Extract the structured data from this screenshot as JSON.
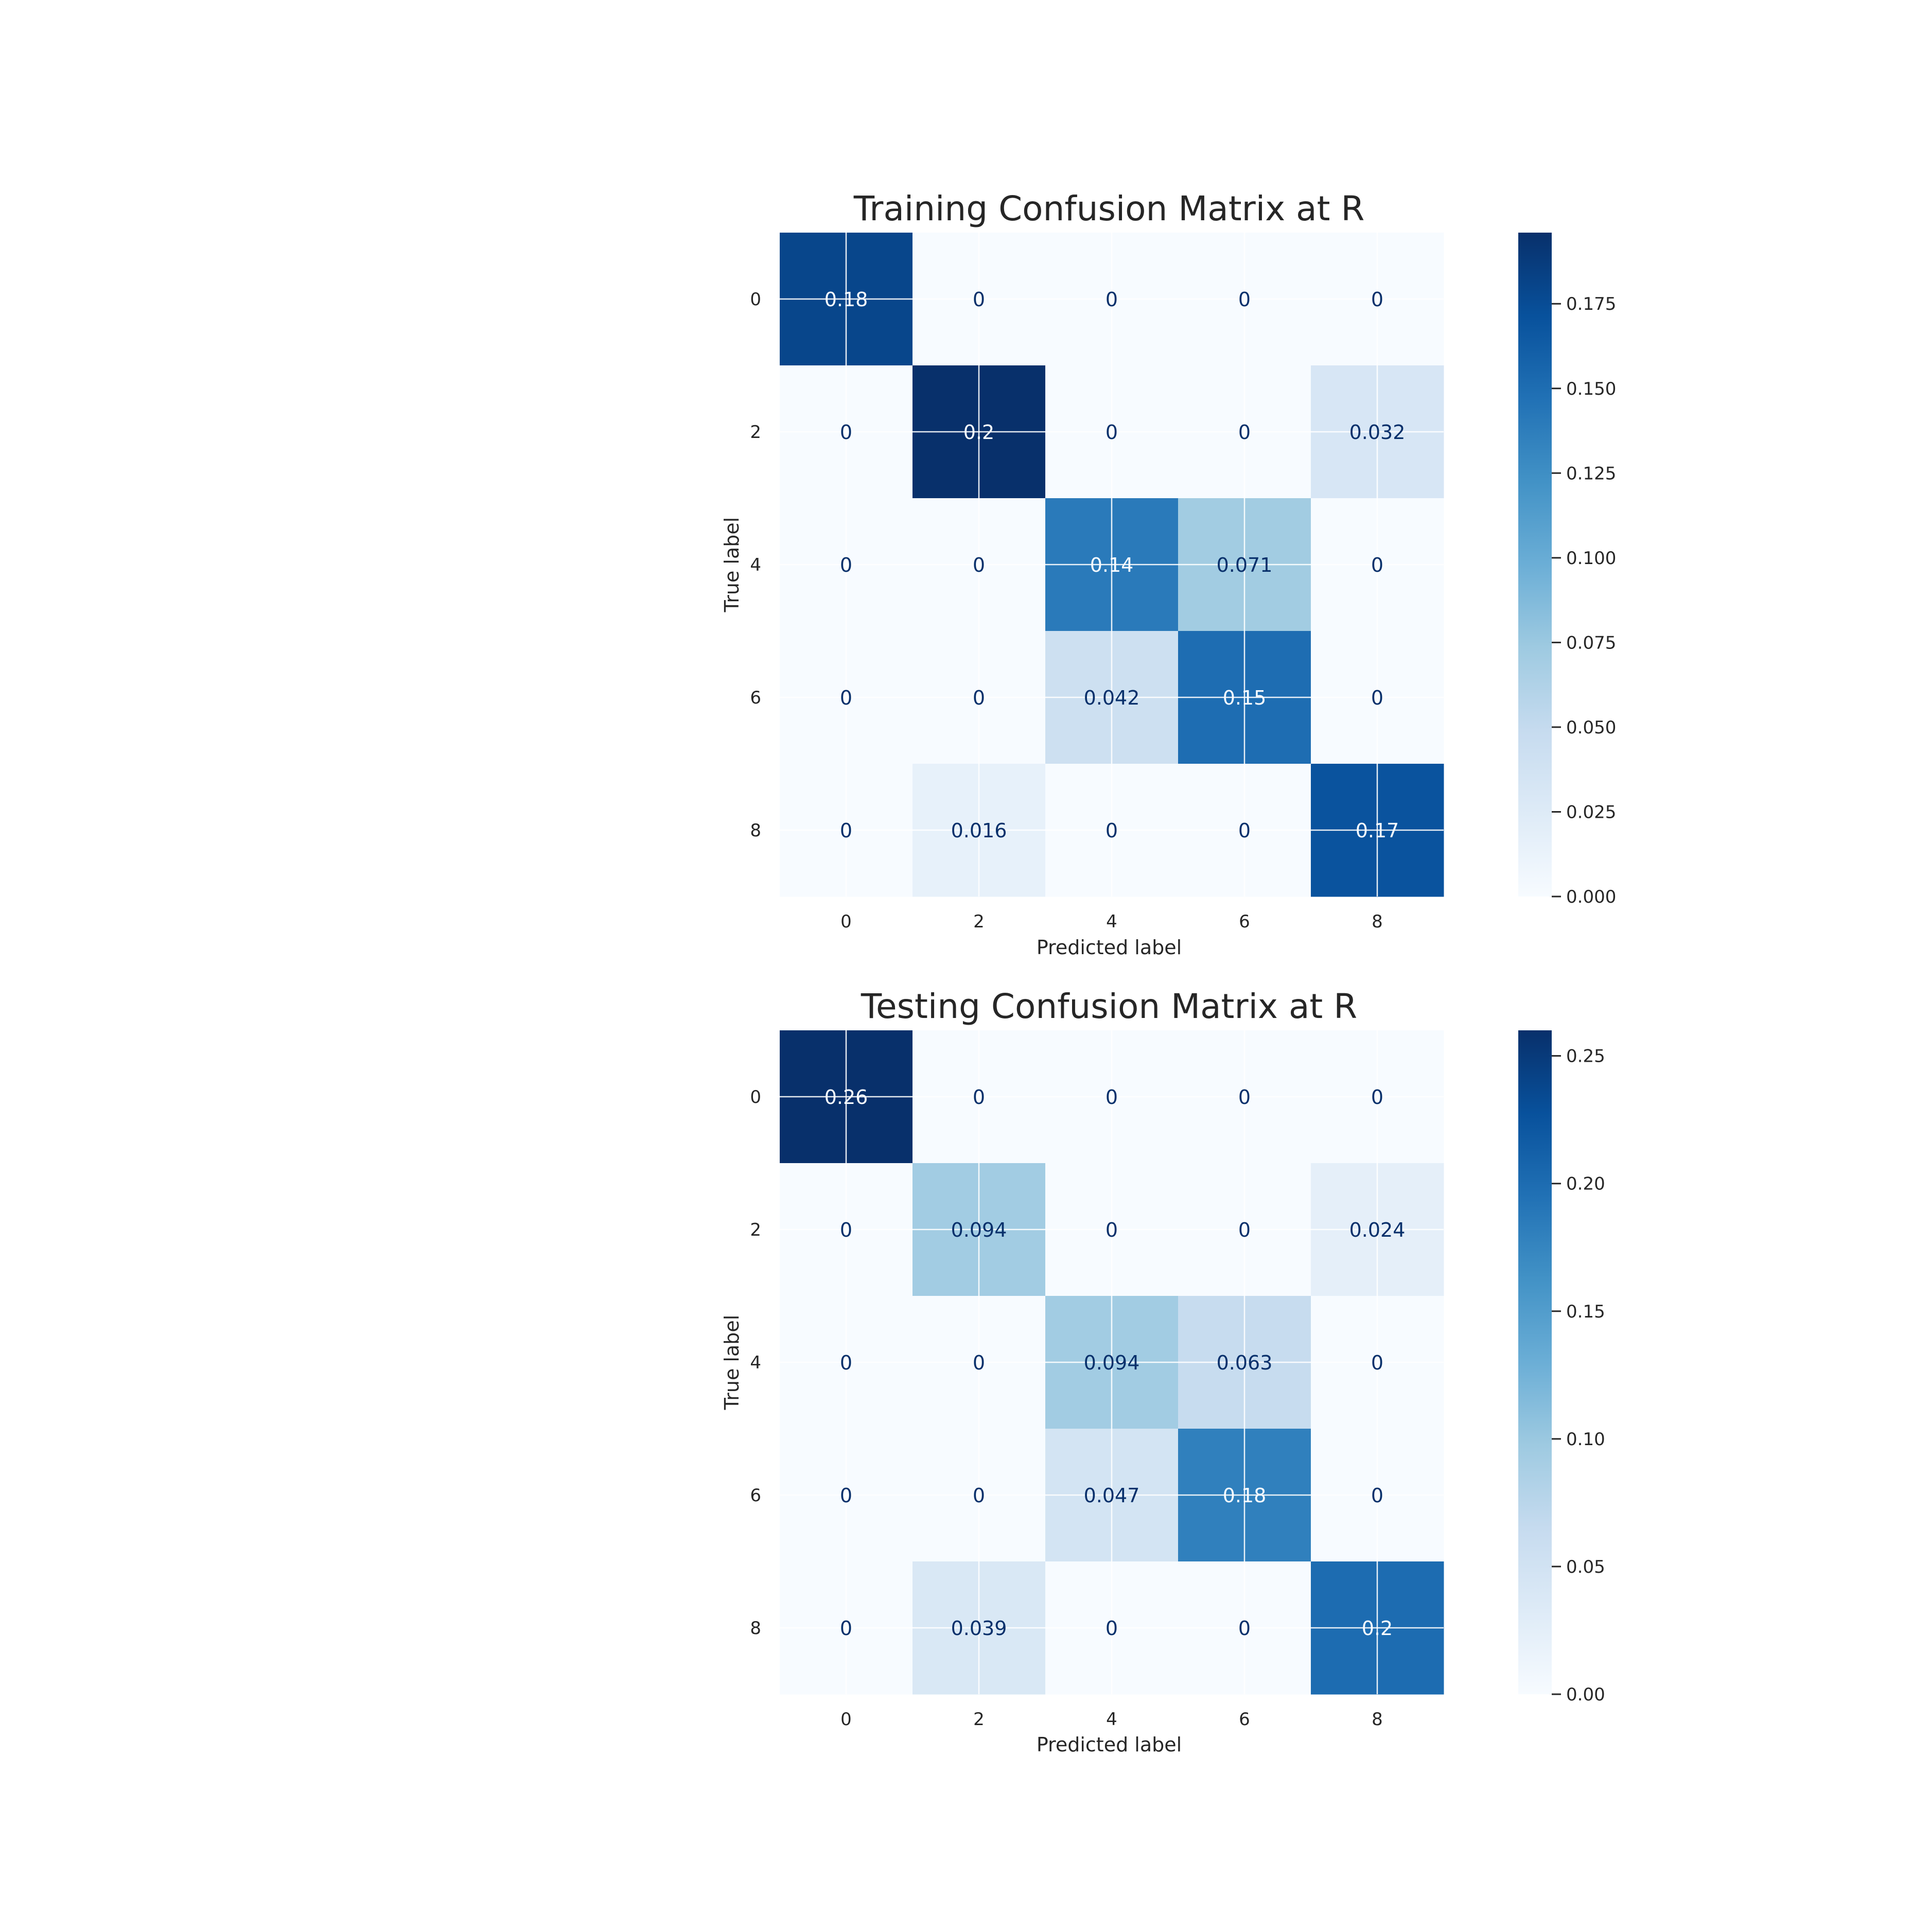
{
  "chart_data": [
    {
      "type": "heatmap",
      "title": "Training Confusion Matrix at R",
      "xlabel": "Predicted label",
      "ylabel": "True label",
      "x_categories": [
        "0",
        "2",
        "4",
        "6",
        "8"
      ],
      "y_categories": [
        "0",
        "2",
        "4",
        "6",
        "8"
      ],
      "values": [
        [
          0.18,
          0,
          0,
          0,
          0
        ],
        [
          0,
          0.2,
          0,
          0,
          0.032
        ],
        [
          0,
          0,
          0.14,
          0.071,
          0
        ],
        [
          0,
          0,
          0.042,
          0.15,
          0
        ],
        [
          0,
          0.016,
          0,
          0,
          0.17
        ]
      ],
      "cell_labels": [
        [
          "0.18",
          "0",
          "0",
          "0",
          "0"
        ],
        [
          "0",
          "0.2",
          "0",
          "0",
          "0.032"
        ],
        [
          "0",
          "0",
          "0.14",
          "0.071",
          "0"
        ],
        [
          "0",
          "0",
          "0.042",
          "0.15",
          "0"
        ],
        [
          "0",
          "0.016",
          "0",
          "0",
          "0.17"
        ]
      ],
      "colormap": "Blues",
      "color_range": [
        0,
        0.196
      ],
      "colorbar_ticks": [
        "0.000",
        "0.025",
        "0.050",
        "0.075",
        "0.100",
        "0.125",
        "0.150",
        "0.175"
      ],
      "colorbar_tick_values": [
        0,
        0.025,
        0.05,
        0.075,
        0.1,
        0.125,
        0.15,
        0.175
      ],
      "grid": true
    },
    {
      "type": "heatmap",
      "title": "Testing Confusion Matrix at R",
      "xlabel": "Predicted label",
      "ylabel": "True label",
      "x_categories": [
        "0",
        "2",
        "4",
        "6",
        "8"
      ],
      "y_categories": [
        "0",
        "2",
        "4",
        "6",
        "8"
      ],
      "values": [
        [
          0.26,
          0,
          0,
          0,
          0
        ],
        [
          0,
          0.094,
          0,
          0,
          0.024
        ],
        [
          0,
          0,
          0.094,
          0.063,
          0
        ],
        [
          0,
          0,
          0.047,
          0.18,
          0
        ],
        [
          0,
          0.039,
          0,
          0,
          0.2
        ]
      ],
      "cell_labels": [
        [
          "0.26",
          "0",
          "0",
          "0",
          "0"
        ],
        [
          "0",
          "0.094",
          "0",
          "0",
          "0.024"
        ],
        [
          "0",
          "0",
          "0.094",
          "0.063",
          "0"
        ],
        [
          "0",
          "0",
          "0.047",
          "0.18",
          "0"
        ],
        [
          "0",
          "0.039",
          "0",
          "0",
          "0.2"
        ]
      ],
      "colormap": "Blues",
      "color_range": [
        0,
        0.26
      ],
      "colorbar_ticks": [
        "0.00",
        "0.05",
        "0.10",
        "0.15",
        "0.20",
        "0.25"
      ],
      "colorbar_tick_values": [
        0,
        0.05,
        0.1,
        0.15,
        0.2,
        0.25
      ],
      "grid": true
    }
  ]
}
